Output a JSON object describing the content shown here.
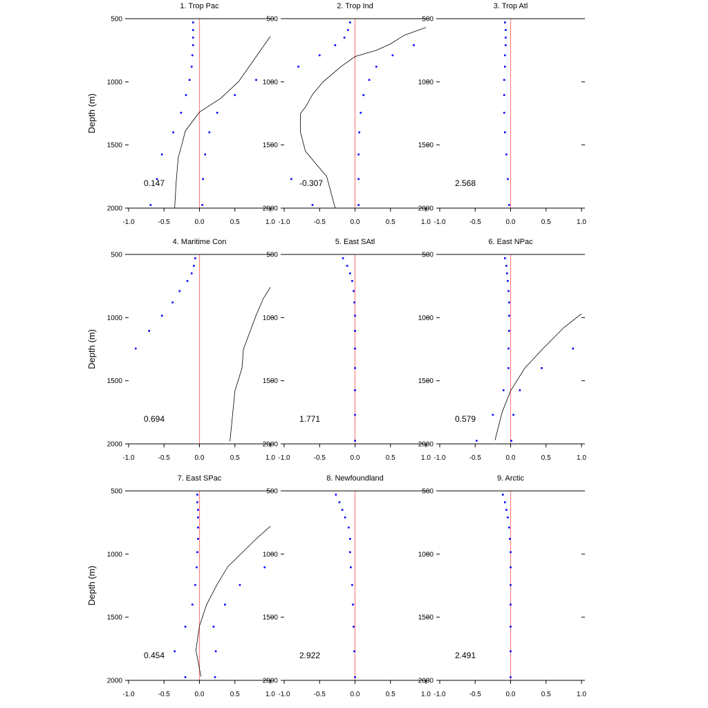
{
  "chart_data": [
    {
      "type": "scatter",
      "title": "1. Trop Pac",
      "ylabel": "Depth (m)",
      "annotation": "0.147",
      "xlim": [
        -1.0,
        1.0
      ],
      "ylim": [
        2000,
        500
      ],
      "xticks": [
        "-1.0",
        "-0.5",
        "0.0",
        "0.5",
        "1.0"
      ],
      "yticks": [
        "500",
        "1000",
        "1500",
        "2000"
      ],
      "points": [
        [
          -0.09,
          530
        ],
        [
          -0.09,
          590
        ],
        [
          -0.09,
          650
        ],
        [
          -0.09,
          710
        ],
        [
          -0.1,
          790
        ],
        [
          -0.11,
          880
        ],
        [
          -0.14,
          985
        ],
        [
          -0.19,
          1105
        ],
        [
          -0.26,
          1245
        ],
        [
          -0.37,
          1400
        ],
        [
          -0.53,
          1575
        ],
        [
          -0.6,
          1770
        ],
        [
          -0.69,
          1975
        ],
        [
          0.8,
          985
        ],
        [
          0.5,
          1105
        ],
        [
          0.25,
          1245
        ],
        [
          0.14,
          1400
        ],
        [
          0.08,
          1575
        ],
        [
          0.05,
          1770
        ],
        [
          0.04,
          1975
        ]
      ],
      "curve": [
        [
          1.0,
          640
        ],
        [
          0.75,
          840
        ],
        [
          0.55,
          1000
        ],
        [
          0.3,
          1130
        ],
        [
          0.0,
          1240
        ],
        [
          -0.2,
          1390
        ],
        [
          -0.25,
          1500
        ],
        [
          -0.3,
          1600
        ],
        [
          -0.33,
          1800
        ],
        [
          -0.35,
          2000
        ]
      ]
    },
    {
      "type": "scatter",
      "title": "2. Trop Ind",
      "annotation": "-0.307",
      "xlim": [
        -1.0,
        1.0
      ],
      "ylim": [
        2000,
        500
      ],
      "xticks": [
        "-1.0",
        "-0.5",
        "0.0",
        "0.5",
        "1.0"
      ],
      "yticks": [
        "500",
        "1000",
        "1500",
        "2000"
      ],
      "points": [
        [
          -0.07,
          530
        ],
        [
          -0.1,
          590
        ],
        [
          -0.15,
          650
        ],
        [
          -0.28,
          710
        ],
        [
          -0.5,
          790
        ],
        [
          -0.8,
          880
        ],
        [
          -0.9,
          1770
        ],
        [
          -0.6,
          1975
        ],
        [
          0.83,
          710
        ],
        [
          0.53,
          790
        ],
        [
          0.3,
          880
        ],
        [
          0.2,
          985
        ],
        [
          0.12,
          1105
        ],
        [
          0.08,
          1245
        ],
        [
          0.06,
          1400
        ],
        [
          0.05,
          1575
        ],
        [
          0.05,
          1770
        ],
        [
          0.05,
          1975
        ]
      ],
      "curve": [
        [
          1.0,
          570
        ],
        [
          0.7,
          630
        ],
        [
          0.5,
          700
        ],
        [
          0.3,
          750
        ],
        [
          0.0,
          800
        ],
        [
          -0.2,
          880
        ],
        [
          -0.45,
          1000
        ],
        [
          -0.6,
          1100
        ],
        [
          -0.7,
          1200
        ],
        [
          -0.77,
          1250
        ],
        [
          -0.77,
          1400
        ],
        [
          -0.7,
          1550
        ],
        [
          -0.55,
          1650
        ],
        [
          -0.4,
          1750
        ],
        [
          -0.28,
          2000
        ]
      ]
    },
    {
      "type": "scatter",
      "title": "3. Trop Atl",
      "annotation": "2.568",
      "xlim": [
        -1.0,
        1.0
      ],
      "ylim": [
        2000,
        500
      ],
      "xticks": [
        "-1.0",
        "-0.5",
        "0.0",
        "0.5",
        "1.0"
      ],
      "yticks": [
        "500",
        "1000",
        "1500",
        "2000"
      ],
      "points": [
        [
          -0.08,
          530
        ],
        [
          -0.07,
          590
        ],
        [
          -0.07,
          650
        ],
        [
          -0.07,
          710
        ],
        [
          -0.08,
          790
        ],
        [
          -0.08,
          880
        ],
        [
          -0.09,
          985
        ],
        [
          -0.09,
          1105
        ],
        [
          -0.09,
          1245
        ],
        [
          -0.08,
          1400
        ],
        [
          -0.06,
          1575
        ],
        [
          -0.04,
          1770
        ],
        [
          -0.02,
          1975
        ]
      ],
      "curve": []
    },
    {
      "type": "scatter",
      "title": "4. Maritime Con",
      "ylabel": "Depth (m)",
      "annotation": "0.694",
      "xlim": [
        -1.0,
        1.0
      ],
      "ylim": [
        2000,
        500
      ],
      "xticks": [
        "-1.0",
        "-0.5",
        "0.0",
        "0.5",
        "1.0"
      ],
      "yticks": [
        "500",
        "1000",
        "1500",
        "2000"
      ],
      "points": [
        [
          -0.06,
          530
        ],
        [
          -0.08,
          590
        ],
        [
          -0.11,
          650
        ],
        [
          -0.17,
          710
        ],
        [
          -0.28,
          790
        ],
        [
          -0.38,
          880
        ],
        [
          -0.53,
          985
        ],
        [
          -0.71,
          1105
        ],
        [
          -0.9,
          1245
        ]
      ],
      "curve": [
        [
          1.0,
          760
        ],
        [
          0.9,
          850
        ],
        [
          0.8,
          980
        ],
        [
          0.7,
          1130
        ],
        [
          0.62,
          1250
        ],
        [
          0.6,
          1400
        ],
        [
          0.5,
          1580
        ],
        [
          0.43,
          1980
        ]
      ]
    },
    {
      "type": "scatter",
      "title": "5. East SAtl",
      "annotation": "1.771",
      "xlim": [
        -1.0,
        1.0
      ],
      "ylim": [
        2000,
        500
      ],
      "xticks": [
        "-1.0",
        "-0.5",
        "0.0",
        "0.5",
        "1.0"
      ],
      "yticks": [
        "500",
        "1000",
        "1500",
        "2000"
      ],
      "points": [
        [
          -0.17,
          530
        ],
        [
          -0.11,
          590
        ],
        [
          -0.07,
          650
        ],
        [
          -0.04,
          710
        ],
        [
          -0.02,
          790
        ],
        [
          -0.01,
          880
        ],
        [
          0.0,
          985
        ],
        [
          0.0,
          1105
        ],
        [
          0.0,
          1245
        ],
        [
          0.0,
          1400
        ],
        [
          0.0,
          1575
        ],
        [
          0.0,
          1770
        ],
        [
          0.0,
          1975
        ]
      ],
      "curve": []
    },
    {
      "type": "scatter",
      "title": "6. East NPac",
      "annotation": "0.579",
      "xlim": [
        -1.0,
        1.0
      ],
      "ylim": [
        2000,
        500
      ],
      "xticks": [
        "-1.0",
        "-0.5",
        "0.0",
        "0.5",
        "1.0"
      ],
      "yticks": [
        "500",
        "1000",
        "1500",
        "2000"
      ],
      "points": [
        [
          -0.08,
          530
        ],
        [
          -0.06,
          590
        ],
        [
          -0.05,
          650
        ],
        [
          -0.04,
          710
        ],
        [
          -0.03,
          790
        ],
        [
          -0.02,
          880
        ],
        [
          -0.02,
          985
        ],
        [
          -0.02,
          1105
        ],
        [
          -0.03,
          1245
        ],
        [
          -0.03,
          1400
        ],
        [
          -0.1,
          1575
        ],
        [
          -0.25,
          1770
        ],
        [
          -0.48,
          1975
        ],
        [
          0.88,
          1245
        ],
        [
          0.44,
          1400
        ],
        [
          0.13,
          1575
        ],
        [
          0.04,
          1770
        ],
        [
          0.01,
          1975
        ]
      ],
      "curve": [
        [
          1.0,
          970
        ],
        [
          0.75,
          1080
        ],
        [
          0.45,
          1250
        ],
        [
          0.2,
          1400
        ],
        [
          0.0,
          1580
        ],
        [
          -0.12,
          1750
        ],
        [
          -0.22,
          1970
        ]
      ]
    },
    {
      "type": "scatter",
      "title": "7. East SPac",
      "ylabel": "Depth (m)",
      "annotation": "0.454",
      "xlim": [
        -1.0,
        1.0
      ],
      "ylim": [
        2000,
        500
      ],
      "xticks": [
        "-1.0",
        "-0.5",
        "0.0",
        "0.5",
        "1.0"
      ],
      "yticks": [
        "500",
        "1000",
        "1500",
        "2000"
      ],
      "points": [
        [
          -0.03,
          530
        ],
        [
          -0.03,
          590
        ],
        [
          -0.02,
          650
        ],
        [
          -0.02,
          710
        ],
        [
          -0.02,
          790
        ],
        [
          -0.02,
          880
        ],
        [
          -0.03,
          985
        ],
        [
          -0.04,
          1105
        ],
        [
          -0.06,
          1245
        ],
        [
          -0.1,
          1400
        ],
        [
          -0.2,
          1575
        ],
        [
          -0.35,
          1770
        ],
        [
          -0.2,
          1975
        ],
        [
          0.92,
          1105
        ],
        [
          0.57,
          1245
        ],
        [
          0.36,
          1400
        ],
        [
          0.2,
          1575
        ],
        [
          0.23,
          1770
        ],
        [
          0.22,
          1975
        ]
      ],
      "curve": [
        [
          1.0,
          780
        ],
        [
          0.8,
          880
        ],
        [
          0.6,
          990
        ],
        [
          0.4,
          1100
        ],
        [
          0.25,
          1240
        ],
        [
          0.1,
          1400
        ],
        [
          0.0,
          1570
        ],
        [
          -0.05,
          1760
        ],
        [
          0.02,
          1970
        ]
      ]
    },
    {
      "type": "scatter",
      "title": "8. Newfoundland",
      "annotation": "2.922",
      "xlim": [
        -1.0,
        1.0
      ],
      "ylim": [
        2000,
        500
      ],
      "xticks": [
        "-1.0",
        "-0.5",
        "0.0",
        "0.5",
        "1.0"
      ],
      "yticks": [
        "500",
        "1000",
        "1500",
        "2000"
      ],
      "points": [
        [
          -0.27,
          530
        ],
        [
          -0.22,
          590
        ],
        [
          -0.18,
          650
        ],
        [
          -0.14,
          710
        ],
        [
          -0.09,
          790
        ],
        [
          -0.07,
          880
        ],
        [
          -0.07,
          985
        ],
        [
          -0.06,
          1105
        ],
        [
          -0.04,
          1245
        ],
        [
          -0.03,
          1400
        ],
        [
          -0.02,
          1575
        ],
        [
          -0.01,
          1770
        ],
        [
          0.0,
          1975
        ]
      ],
      "curve": []
    },
    {
      "type": "scatter",
      "title": "9. Arctic",
      "annotation": "2.491",
      "xlim": [
        -1.0,
        1.0
      ],
      "ylim": [
        2000,
        500
      ],
      "xticks": [
        "-1.0",
        "-0.5",
        "0.0",
        "0.5",
        "1.0"
      ],
      "yticks": [
        "500",
        "1000",
        "1500",
        "2000"
      ],
      "points": [
        [
          -0.11,
          530
        ],
        [
          -0.08,
          590
        ],
        [
          -0.06,
          650
        ],
        [
          -0.04,
          710
        ],
        [
          -0.02,
          790
        ],
        [
          -0.01,
          880
        ],
        [
          0.0,
          985
        ],
        [
          0.0,
          1105
        ],
        [
          0.0,
          1245
        ],
        [
          0.0,
          1400
        ],
        [
          0.0,
          1575
        ],
        [
          0.0,
          1770
        ],
        [
          0.0,
          1975
        ]
      ],
      "curve": []
    }
  ],
  "colors": {
    "points": "#0000ff",
    "zero_line": "#ff8080",
    "curve": "#000000",
    "axes": "#000000"
  }
}
